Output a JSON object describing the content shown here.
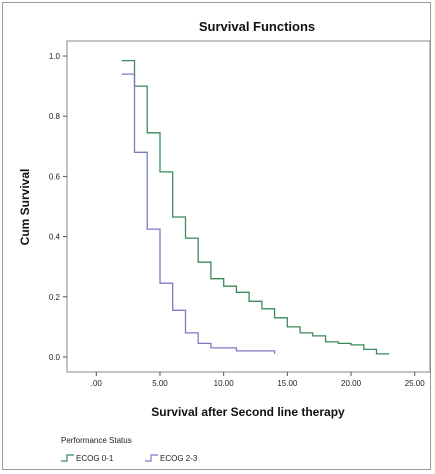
{
  "chart_data": {
    "type": "line",
    "step": true,
    "title": "Survival Functions",
    "xlabel": "Survival after Second line therapy",
    "ylabel": "Cum Survival",
    "xlim": [
      -2.3,
      26.2
    ],
    "ylim": [
      -0.05,
      1.05
    ],
    "xticks": [
      0,
      5,
      10,
      15,
      20,
      25
    ],
    "xtick_labels": [
      ".00",
      "5.00",
      "10.00",
      "15.00",
      "20.00",
      "25.00"
    ],
    "yticks": [
      0,
      0.2,
      0.4,
      0.6,
      0.8,
      1.0
    ],
    "ytick_labels": [
      "0.0",
      "0.2",
      "0.4",
      "0.6",
      "0.8",
      "1.0"
    ],
    "grid": false,
    "legend_title": "Performance Status",
    "legend_position": "bottom-left",
    "series": [
      {
        "name": "ECOG 0-1",
        "color": "#3a8a5a",
        "points": [
          [
            2,
            0.985
          ],
          [
            3,
            0.985
          ],
          [
            3,
            0.9
          ],
          [
            4,
            0.9
          ],
          [
            4,
            0.745
          ],
          [
            5,
            0.745
          ],
          [
            5,
            0.615
          ],
          [
            6,
            0.615
          ],
          [
            6,
            0.465
          ],
          [
            7,
            0.465
          ],
          [
            7,
            0.395
          ],
          [
            8,
            0.395
          ],
          [
            8,
            0.315
          ],
          [
            9,
            0.315
          ],
          [
            9,
            0.26
          ],
          [
            10,
            0.26
          ],
          [
            10,
            0.235
          ],
          [
            11,
            0.235
          ],
          [
            11,
            0.215
          ],
          [
            12,
            0.215
          ],
          [
            12,
            0.185
          ],
          [
            13,
            0.185
          ],
          [
            13,
            0.16
          ],
          [
            14,
            0.16
          ],
          [
            14,
            0.13
          ],
          [
            15,
            0.13
          ],
          [
            15,
            0.1
          ],
          [
            16,
            0.1
          ],
          [
            16,
            0.08
          ],
          [
            17,
            0.08
          ],
          [
            17,
            0.07
          ],
          [
            18,
            0.07
          ],
          [
            18,
            0.05
          ],
          [
            19,
            0.05
          ],
          [
            19,
            0.045
          ],
          [
            20,
            0.045
          ],
          [
            20,
            0.04
          ],
          [
            21,
            0.04
          ],
          [
            21,
            0.025
          ],
          [
            22,
            0.025
          ],
          [
            22,
            0.01
          ],
          [
            23,
            0.01
          ]
        ]
      },
      {
        "name": "ECOG 2-3",
        "color": "#7b7bc4",
        "points": [
          [
            2,
            0.94
          ],
          [
            3,
            0.94
          ],
          [
            3,
            0.68
          ],
          [
            4,
            0.68
          ],
          [
            4,
            0.425
          ],
          [
            5,
            0.425
          ],
          [
            5,
            0.245
          ],
          [
            6,
            0.245
          ],
          [
            6,
            0.155
          ],
          [
            7,
            0.155
          ],
          [
            7,
            0.08
          ],
          [
            8,
            0.08
          ],
          [
            8,
            0.045
          ],
          [
            9,
            0.045
          ],
          [
            9,
            0.03
          ],
          [
            11,
            0.03
          ],
          [
            11,
            0.02
          ],
          [
            14,
            0.02
          ],
          [
            14,
            0.01
          ]
        ]
      }
    ]
  }
}
